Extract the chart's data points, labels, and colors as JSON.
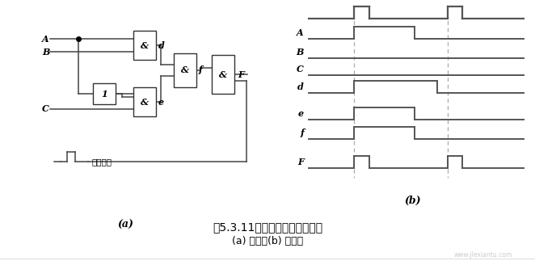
{
  "bg_color": "#ffffff",
  "title_main": "图5.3.11利用取样脉冲克服险象",
  "title_sub": "(a) 逻辑图(b) 波形图",
  "label_a": "(a)",
  "label_b": "(b)",
  "waveform_labels": [
    "A",
    "B",
    "C",
    "d",
    "e",
    "f",
    "F"
  ],
  "sampling_label": "取样脉冲",
  "line_color": "#444444",
  "wave_color": "#666666"
}
